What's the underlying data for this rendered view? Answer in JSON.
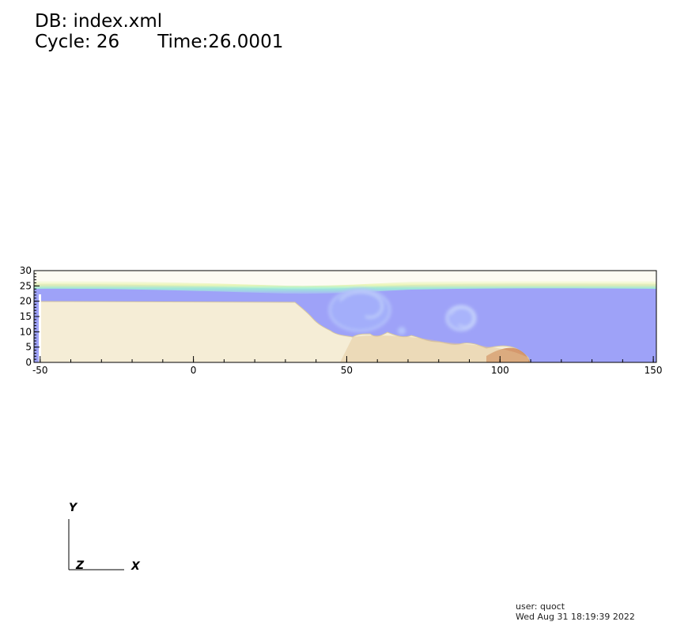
{
  "header": {
    "db_label": "DB: index.xml",
    "cycle_label": "Cycle: 26",
    "time_label": "Time:26.0001"
  },
  "plot": {
    "x_range": [
      -52,
      151
    ],
    "y_range": [
      0,
      30
    ],
    "x_ticks": [
      -50,
      0,
      50,
      100,
      150
    ],
    "y_ticks": [
      0,
      5,
      10,
      15,
      20,
      25,
      30
    ],
    "colors": {
      "water": "#9ea2f8",
      "sediment": "#f5edd6",
      "sediment_dark": "#c97b4a",
      "air": "#fdfbf2",
      "interface": "#9ef0d4"
    }
  },
  "triad": {
    "y_label": "Y",
    "z_label": "Z",
    "x_label": "X"
  },
  "user_info": {
    "user": "user: quoct",
    "date": "Wed Aug 31 18:19:39 2022"
  }
}
